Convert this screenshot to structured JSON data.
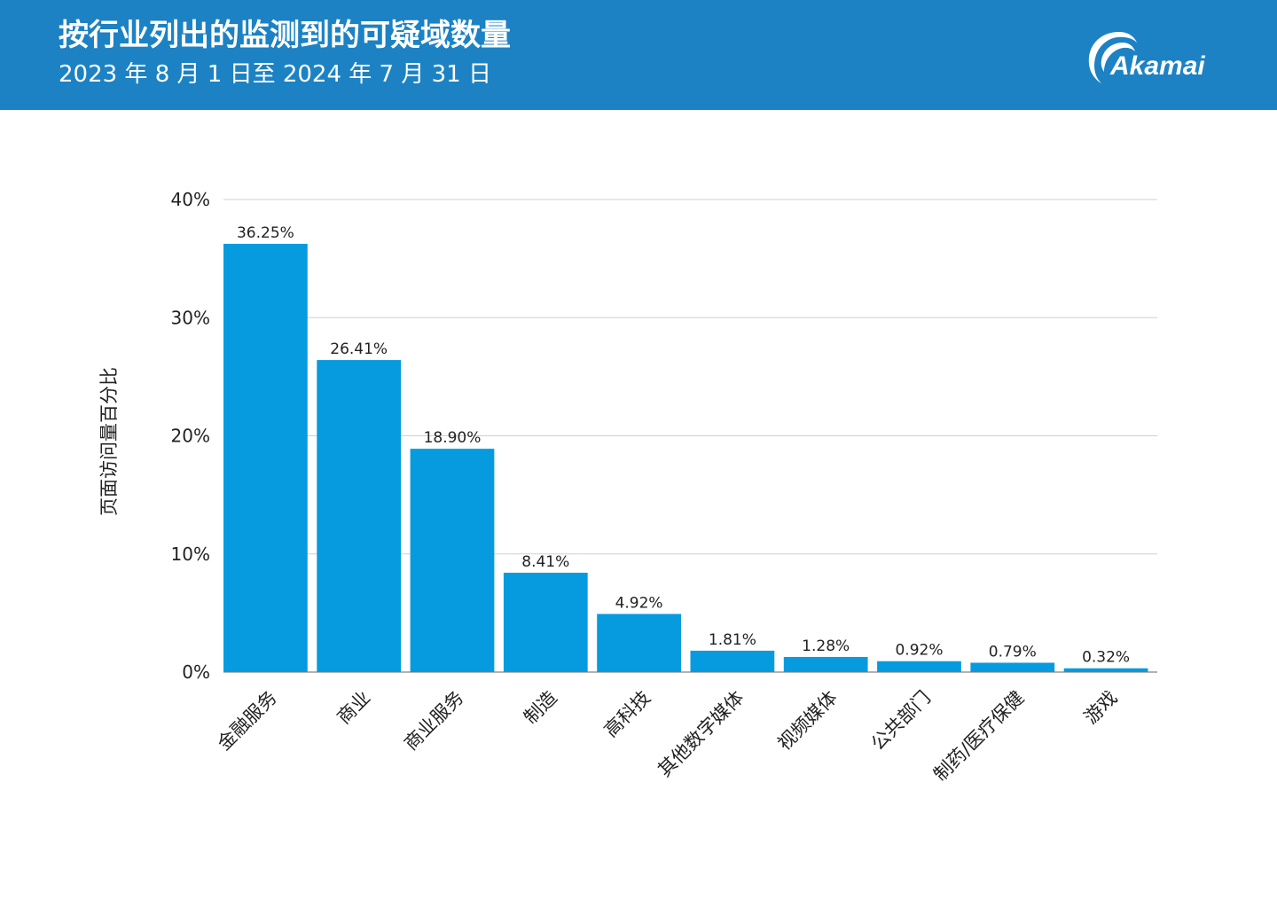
{
  "header": {
    "title": "按行业列出的监测到的可疑域数量",
    "subtitle": "2023 年 8 月 1 日至 2024 年 7 月 31 日",
    "logo_text": "Akamai",
    "background_color": "#1c82c4"
  },
  "chart_data": {
    "type": "bar",
    "ylabel": "页面访问量百分比",
    "ylim": [
      0,
      40
    ],
    "yticks": [
      0,
      10,
      20,
      30,
      40
    ],
    "ytick_labels": [
      "0%",
      "10%",
      "20%",
      "30%",
      "40%"
    ],
    "grid": true,
    "bar_color": "#069bde",
    "categories": [
      "金融服务",
      "商业",
      "商业服务",
      "制造",
      "高科技",
      "其他数字媒体",
      "视频媒体",
      "公共部门",
      "制药/医疗保健",
      "游戏"
    ],
    "values": [
      36.25,
      26.41,
      18.9,
      8.41,
      4.92,
      1.81,
      1.28,
      0.92,
      0.79,
      0.32
    ],
    "value_labels": [
      "36.25%",
      "26.41%",
      "18.90%",
      "8.41%",
      "4.92%",
      "1.81%",
      "1.28%",
      "0.92%",
      "0.79%",
      "0.32%"
    ]
  }
}
